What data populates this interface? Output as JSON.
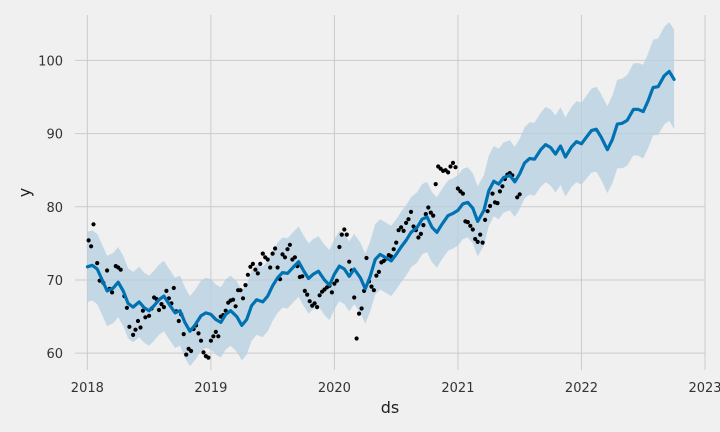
{
  "chart_data": {
    "type": "line",
    "xlabel": "ds",
    "ylabel": "y",
    "xlim": [
      2017.9,
      2023.0
    ],
    "ylim": [
      57.7,
      106.2
    ],
    "x_ticks": [
      "2018",
      "2019",
      "2020",
      "2021",
      "2022",
      "2023"
    ],
    "y_ticks": [
      60,
      70,
      80,
      90,
      100
    ],
    "grid": true,
    "colors": {
      "background": "#f0f0f0",
      "forecast": "#0072b2",
      "band": "#b6cfe2",
      "points": "#000000",
      "grid": "#cbcbcb"
    },
    "series": [
      {
        "role": "observed",
        "x": [
          2018.01,
          2018.03,
          2018.05,
          2018.08,
          2018.1,
          2018.13,
          2018.16,
          2018.18,
          2018.2,
          2018.23,
          2018.25,
          2018.27,
          2018.3,
          2018.32,
          2018.34,
          2018.37,
          2018.39,
          2018.41,
          2018.43,
          2018.45,
          2018.47,
          2018.5,
          2018.52,
          2018.54,
          2018.56,
          2018.58,
          2018.6,
          2018.62,
          2018.64,
          2018.66,
          2018.68,
          2018.7,
          2018.72,
          2018.74,
          2018.76,
          2018.78,
          2018.8,
          2018.82,
          2018.84,
          2018.86,
          2018.88,
          2018.9,
          2018.92,
          2018.94,
          2018.96,
          2018.98,
          2019.0,
          2019.02,
          2019.04,
          2019.06,
          2019.08,
          2019.1,
          2019.12,
          2019.14,
          2019.16,
          2019.18,
          2019.2,
          2019.22,
          2019.24,
          2019.26,
          2019.28,
          2019.3,
          2019.32,
          2019.34,
          2019.36,
          2019.38,
          2019.4,
          2019.42,
          2019.44,
          2019.46,
          2019.48,
          2019.5,
          2019.52,
          2019.54,
          2019.56,
          2019.58,
          2019.6,
          2019.62,
          2019.64,
          2019.66,
          2019.68,
          2019.7,
          2019.72,
          2019.74,
          2019.76,
          2019.78,
          2019.8,
          2019.82,
          2019.84,
          2019.86,
          2019.88,
          2019.9,
          2019.92,
          2019.94,
          2019.96,
          2019.98,
          2020.0,
          2020.02,
          2020.04,
          2020.06,
          2020.08,
          2020.1,
          2020.12,
          2020.14,
          2020.16,
          2020.18,
          2020.2,
          2020.22,
          2020.24,
          2020.26,
          2020.28,
          2020.3,
          2020.32,
          2020.34,
          2020.36,
          2020.38,
          2020.4,
          2020.42,
          2020.44,
          2020.46,
          2020.48,
          2020.5,
          2020.52,
          2020.54,
          2020.56,
          2020.58,
          2020.6,
          2020.62,
          2020.64,
          2020.66,
          2020.68,
          2020.7,
          2020.72,
          2020.74,
          2020.76,
          2020.78,
          2020.8,
          2020.82,
          2020.84,
          2020.86,
          2020.88,
          2020.9,
          2020.92,
          2020.94,
          2020.96,
          2020.98,
          2021.0,
          2021.02,
          2021.04,
          2021.06,
          2021.08,
          2021.1,
          2021.12,
          2021.14,
          2021.16,
          2021.18,
          2021.2,
          2021.22,
          2021.24,
          2021.26,
          2021.28,
          2021.3,
          2021.32,
          2021.34,
          2021.36,
          2021.38,
          2021.4,
          2021.42,
          2021.44,
          2021.46,
          2021.48,
          2021.5
        ],
        "y": [
          75.4,
          74.6,
          77.6,
          72.3,
          69.9,
          69.6,
          71.3,
          68.8,
          68.3,
          71.9,
          71.7,
          71.4,
          67.8,
          66.2,
          63.6,
          62.5,
          63.2,
          64.4,
          63.5,
          65.8,
          64.9,
          65.1,
          66.1,
          67.6,
          67.4,
          65.9,
          66.7,
          66.3,
          68.5,
          67.5,
          66.8,
          68.9,
          65.7,
          64.4,
          65.3,
          62.6,
          59.8,
          60.6,
          60.3,
          63.3,
          63.8,
          62.7,
          61.7,
          60.1,
          59.6,
          59.4,
          61.7,
          62.3,
          62.9,
          62.3,
          65.0,
          65.2,
          65.8,
          66.9,
          67.2,
          67.3,
          66.4,
          68.6,
          68.6,
          67.5,
          69.3,
          70.7,
          71.8,
          72.2,
          71.4,
          70.9,
          72.2,
          73.6,
          73.1,
          72.8,
          71.7,
          73.6,
          74.3,
          71.7,
          70.1,
          73.5,
          73.1,
          74.2,
          74.8,
          72.8,
          73.1,
          71.9,
          70.4,
          70.5,
          68.5,
          68.0,
          67.1,
          66.5,
          66.8,
          66.3,
          67.9,
          68.4,
          68.7,
          69.0,
          69.2,
          68.3,
          69.5,
          69.9,
          74.5,
          76.2,
          76.9,
          76.2,
          72.5,
          71.3,
          67.6,
          62.0,
          65.4,
          66.1,
          68.5,
          73.0,
          69.8,
          69.1,
          68.6,
          70.6,
          71.1,
          72.4,
          72.6,
          72.9,
          73.4,
          73.2,
          74.2,
          75.1,
          76.8,
          77.2,
          76.7,
          77.8,
          78.3,
          79.3,
          77.3,
          76.8,
          75.8,
          76.3,
          77.5,
          79.0,
          79.9,
          79.2,
          78.8,
          83.1,
          85.5,
          85.2,
          84.9,
          85.0,
          84.7,
          85.5,
          86.0,
          85.4,
          82.5,
          82.1,
          81.8,
          78.0,
          77.9,
          77.4,
          76.9,
          75.6,
          75.2,
          76.2,
          75.1,
          78.2,
          79.4,
          80.1,
          81.8,
          80.6,
          80.5,
          82.1,
          82.8,
          83.8,
          84.4,
          84.6,
          84.3,
          83.6,
          81.3,
          81.7
        ]
      },
      {
        "role": "forecast",
        "x": [
          2018.0,
          2018.04,
          2018.08,
          2018.12,
          2018.16,
          2018.21,
          2018.25,
          2018.29,
          2018.33,
          2018.37,
          2018.42,
          2018.46,
          2018.5,
          2018.54,
          2018.58,
          2018.62,
          2018.67,
          2018.71,
          2018.75,
          2018.79,
          2018.83,
          2018.87,
          2018.92,
          2018.96,
          2019.0,
          2019.04,
          2019.08,
          2019.12,
          2019.16,
          2019.21,
          2019.25,
          2019.29,
          2019.33,
          2019.37,
          2019.42,
          2019.46,
          2019.5,
          2019.54,
          2019.58,
          2019.62,
          2019.67,
          2019.71,
          2019.75,
          2019.79,
          2019.83,
          2019.87,
          2019.92,
          2019.96,
          2020.0,
          2020.04,
          2020.08,
          2020.12,
          2020.16,
          2020.21,
          2020.25,
          2020.29,
          2020.33,
          2020.37,
          2020.42,
          2020.46,
          2020.5,
          2020.54,
          2020.58,
          2020.62,
          2020.67,
          2020.71,
          2020.75,
          2020.79,
          2020.83,
          2020.87,
          2020.92,
          2020.96,
          2021.0,
          2021.04,
          2021.08,
          2021.12,
          2021.16,
          2021.21,
          2021.25,
          2021.29,
          2021.33,
          2021.37,
          2021.42,
          2021.46,
          2021.5,
          2021.54,
          2021.58,
          2021.62,
          2021.67,
          2021.71,
          2021.75,
          2021.79,
          2021.83,
          2021.87,
          2021.92,
          2021.96,
          2022.0,
          2022.04,
          2022.08,
          2022.12,
          2022.16,
          2022.21,
          2022.25,
          2022.29,
          2022.33,
          2022.37,
          2022.42,
          2022.46,
          2022.5,
          2022.54,
          2022.58,
          2022.62,
          2022.67,
          2022.71,
          2022.75
        ],
        "y": [
          71.8,
          72.0,
          71.5,
          70.0,
          68.5,
          68.9,
          69.7,
          68.5,
          66.8,
          66.3,
          67.0,
          66.2,
          65.8,
          66.5,
          67.3,
          67.8,
          66.5,
          65.5,
          65.8,
          64.2,
          63.0,
          63.8,
          65.1,
          65.5,
          65.3,
          64.6,
          64.2,
          65.3,
          65.8,
          65.0,
          63.8,
          64.6,
          66.5,
          67.3,
          67.0,
          67.8,
          69.2,
          70.3,
          71.0,
          70.9,
          71.8,
          72.5,
          71.3,
          70.2,
          70.8,
          71.2,
          70.0,
          69.3,
          70.8,
          71.9,
          71.5,
          70.5,
          71.5,
          70.3,
          68.8,
          70.5,
          72.8,
          73.5,
          73.0,
          72.6,
          73.5,
          74.5,
          75.4,
          76.5,
          77.2,
          78.3,
          78.6,
          77.2,
          76.5,
          77.6,
          78.8,
          79.1,
          79.5,
          80.4,
          80.6,
          79.8,
          78.0,
          79.5,
          82.2,
          83.5,
          83.1,
          84.0,
          84.3,
          83.4,
          84.5,
          86.0,
          86.6,
          86.5,
          87.8,
          88.5,
          88.1,
          87.2,
          88.3,
          86.8,
          88.2,
          88.9,
          88.6,
          89.5,
          90.4,
          90.6,
          89.5,
          87.8,
          89.2,
          91.3,
          91.4,
          91.8,
          93.3,
          93.3,
          93.0,
          94.5,
          96.3,
          96.4,
          97.9,
          98.5,
          97.4
        ]
      }
    ]
  }
}
